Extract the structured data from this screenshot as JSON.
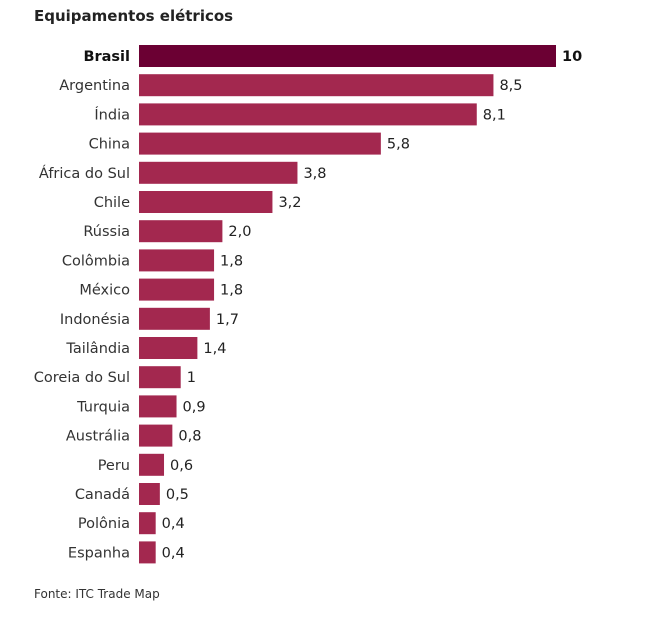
{
  "chart_data": {
    "type": "bar",
    "orientation": "horizontal",
    "title": "Equipamentos elétricos",
    "source": "Fonte: ITC Trade Map",
    "categories": [
      "Brasil",
      "Argentina",
      "Índia",
      "China",
      "África do Sul",
      "Chile",
      "Rússia",
      "Colômbia",
      "México",
      "Indonésia",
      "Tailândia",
      "Coreia do Sul",
      "Turquia",
      "Austrália",
      "Peru",
      "Canadá",
      "Polônia",
      "Espanha"
    ],
    "values": [
      10,
      8.5,
      8.1,
      5.8,
      3.8,
      3.2,
      2.0,
      1.8,
      1.8,
      1.7,
      1.4,
      1,
      0.9,
      0.8,
      0.6,
      0.5,
      0.4,
      0.4
    ],
    "value_labels": [
      "10",
      "8,5",
      "8,1",
      "5,8",
      "3,8",
      "3,2",
      "2,0",
      "1,8",
      "1,8",
      "1,7",
      "1,4",
      "1",
      "0,9",
      "0,8",
      "0,6",
      "0,5",
      "0,4",
      "0,4"
    ],
    "highlight": "Brasil",
    "colors": {
      "highlight": "#6b0033",
      "default": "#a3284f"
    },
    "xlim": [
      0,
      10
    ],
    "grid": false,
    "legend": "none"
  }
}
